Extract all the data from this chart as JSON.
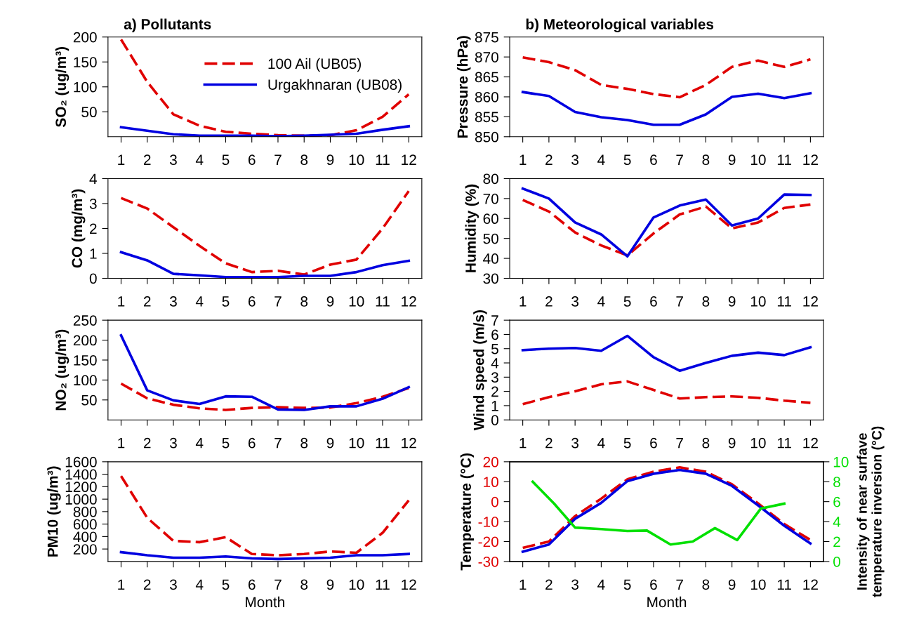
{
  "chart_data": [
    {
      "type": "line",
      "title": "a) Pollutants",
      "ylabel": "SO₂ (ug/m³)",
      "x": [
        1,
        2,
        3,
        4,
        5,
        6,
        7,
        8,
        9,
        10,
        11,
        12
      ],
      "xlim": [
        0.5,
        12.5
      ],
      "xticks": [
        1,
        2,
        3,
        4,
        5,
        6,
        7,
        8,
        9,
        10,
        11,
        12
      ],
      "ylim": [
        0,
        200
      ],
      "yticks": [
        50,
        100,
        150,
        200
      ],
      "legend": "top right",
      "series": [
        {
          "name": "100 Ail (UB05)",
          "color": "#e00000",
          "line_style": "dashed",
          "values": [
            195,
            110,
            45,
            22,
            10,
            6,
            3,
            2,
            3,
            13,
            40,
            85
          ]
        },
        {
          "name": "Urgakhnaran (UB08)",
          "color": "#0000e0",
          "line_style": "solid",
          "values": [
            19,
            12,
            5,
            2,
            2,
            2,
            1,
            2,
            4,
            6,
            14,
            21
          ]
        }
      ]
    },
    {
      "type": "line",
      "ylabel": "CO (mg/m³)",
      "x": [
        1,
        2,
        3,
        4,
        5,
        6,
        7,
        8,
        9,
        10,
        11,
        12
      ],
      "xlim": [
        0.5,
        12.5
      ],
      "xticks": [
        1,
        2,
        3,
        4,
        5,
        6,
        7,
        8,
        9,
        10,
        11,
        12
      ],
      "ylim": [
        0,
        4
      ],
      "yticks": [
        0,
        1,
        2,
        3,
        4
      ],
      "series": [
        {
          "color": "#e00000",
          "line_style": "dashed",
          "values": [
            3.22,
            2.8,
            2.05,
            1.3,
            0.6,
            0.25,
            0.3,
            0.15,
            0.55,
            0.75,
            2.0,
            3.5
          ]
        },
        {
          "color": "#0000e0",
          "line_style": "solid",
          "values": [
            1.05,
            0.72,
            0.18,
            0.12,
            0.05,
            0.05,
            0.05,
            0.1,
            0.1,
            0.25,
            0.53,
            0.7
          ]
        }
      ]
    },
    {
      "type": "line",
      "ylabel": "NO₂ (ug/m³)",
      "x": [
        1,
        2,
        3,
        4,
        5,
        6,
        7,
        8,
        9,
        10,
        11,
        12
      ],
      "xlim": [
        0.5,
        12.5
      ],
      "xticks": [
        1,
        2,
        3,
        4,
        5,
        6,
        7,
        8,
        9,
        10,
        11,
        12
      ],
      "ylim": [
        0,
        250
      ],
      "yticks": [
        50,
        100,
        150,
        200,
        250
      ],
      "series": [
        {
          "color": "#e00000",
          "line_style": "dashed",
          "values": [
            91,
            54,
            38,
            29,
            25,
            30,
            32,
            30,
            31,
            42,
            58,
            80
          ]
        },
        {
          "color": "#0000e0",
          "line_style": "solid",
          "values": [
            212,
            74,
            49,
            40,
            59,
            58,
            26,
            25,
            34,
            34,
            53,
            82
          ]
        }
      ]
    },
    {
      "type": "line",
      "ylabel": "PM10 (ug/m³)",
      "xlabel": "Month",
      "x": [
        1,
        2,
        3,
        4,
        5,
        6,
        7,
        8,
        9,
        10,
        11,
        12
      ],
      "xlim": [
        0.5,
        12.5
      ],
      "xticks": [
        1,
        2,
        3,
        4,
        5,
        6,
        7,
        8,
        9,
        10,
        11,
        12
      ],
      "ylim": [
        0,
        1600
      ],
      "yticks": [
        200,
        400,
        600,
        800,
        1000,
        1200,
        1400,
        1600
      ],
      "series": [
        {
          "color": "#e00000",
          "line_style": "dashed",
          "values": [
            1370,
            700,
            330,
            310,
            390,
            120,
            100,
            120,
            160,
            140,
            460,
            980
          ]
        },
        {
          "color": "#0000e0",
          "line_style": "solid",
          "values": [
            150,
            100,
            60,
            60,
            80,
            50,
            40,
            50,
            60,
            100,
            100,
            120
          ]
        }
      ]
    },
    {
      "type": "line",
      "title": "b) Meteorological variables",
      "ylabel": "Pressure (hPa)",
      "x": [
        1,
        2,
        3,
        4,
        5,
        6,
        7,
        8,
        9,
        10,
        11,
        12
      ],
      "xlim": [
        0.5,
        12.5
      ],
      "xticks": [
        1,
        2,
        3,
        4,
        5,
        6,
        7,
        8,
        9,
        10,
        11,
        12
      ],
      "ylim": [
        850,
        875
      ],
      "yticks": [
        850,
        855,
        860,
        865,
        870,
        875
      ],
      "series": [
        {
          "color": "#e00000",
          "line_style": "dashed",
          "values": [
            869.9,
            868.7,
            866.7,
            863.0,
            862.0,
            860.7,
            859.9,
            863.0,
            867.5,
            869.1,
            867.5,
            869.4
          ]
        },
        {
          "color": "#0000e0",
          "line_style": "solid",
          "values": [
            861.2,
            860.2,
            856.2,
            854.9,
            854.2,
            853.0,
            853.0,
            855.6,
            860.0,
            860.8,
            859.7,
            860.9
          ]
        }
      ]
    },
    {
      "type": "line",
      "ylabel": "Humidity (%)",
      "x": [
        1,
        2,
        3,
        4,
        5,
        6,
        7,
        8,
        9,
        10,
        11,
        12
      ],
      "xlim": [
        0.5,
        12.5
      ],
      "xticks": [
        1,
        2,
        3,
        4,
        5,
        6,
        7,
        8,
        9,
        10,
        11,
        12
      ],
      "ylim": [
        30,
        80
      ],
      "yticks": [
        30,
        40,
        50,
        60,
        70,
        80
      ],
      "series": [
        {
          "color": "#e00000",
          "line_style": "dashed",
          "values": [
            69.3,
            63.5,
            53,
            46.5,
            41.5,
            52.5,
            62,
            66,
            55,
            58,
            65.3,
            67
          ]
        },
        {
          "color": "#0000e0",
          "line_style": "solid",
          "values": [
            75,
            70,
            58,
            52,
            41,
            60.5,
            66.5,
            69.5,
            56.5,
            60,
            72,
            71.8
          ]
        }
      ]
    },
    {
      "type": "line",
      "ylabel": "Wind speed (m/s)",
      "x": [
        1,
        2,
        3,
        4,
        5,
        6,
        7,
        8,
        9,
        10,
        11,
        12
      ],
      "xlim": [
        0.5,
        12.5
      ],
      "xticks": [
        1,
        2,
        3,
        4,
        5,
        6,
        7,
        8,
        9,
        10,
        11,
        12
      ],
      "ylim": [
        0,
        7
      ],
      "yticks": [
        0,
        1,
        2,
        3,
        4,
        5,
        6,
        7
      ],
      "series": [
        {
          "color": "#e00000",
          "line_style": "dashed",
          "values": [
            1.1,
            1.6,
            2.0,
            2.5,
            2.7,
            2.1,
            1.5,
            1.6,
            1.65,
            1.55,
            1.35,
            1.2
          ]
        },
        {
          "color": "#0000e0",
          "line_style": "solid",
          "values": [
            4.9,
            5.0,
            5.05,
            4.85,
            5.9,
            4.4,
            3.45,
            4.0,
            4.5,
            4.72,
            4.55,
            5.1
          ]
        }
      ]
    },
    {
      "type": "line",
      "ylabel": "Temperature (°C)",
      "y2label": "Intensity of near surfave\ntemperature inversion (°C)",
      "xlabel": "Month",
      "x": [
        1,
        2,
        3,
        4,
        5,
        6,
        7,
        8,
        9,
        10,
        11,
        12
      ],
      "xlim": [
        0.5,
        12.5
      ],
      "xticks": [
        1,
        2,
        3,
        4,
        5,
        6,
        7,
        8,
        9,
        10,
        11,
        12
      ],
      "ylim": [
        -30,
        20
      ],
      "yticks": [
        -30,
        -20,
        -10,
        0,
        10,
        20
      ],
      "y2lim": [
        0,
        10
      ],
      "y2ticks": [
        0,
        2,
        4,
        6,
        8,
        10
      ],
      "series": [
        {
          "color": "#e00000",
          "line_style": "dashed",
          "values": [
            -23.2,
            -20,
            -7.3,
            1.5,
            11.2,
            15,
            17.2,
            15,
            8.7,
            -0.9,
            -11.2,
            -19.2
          ]
        },
        {
          "color": "#0000e0",
          "line_style": "solid",
          "values": [
            -25.1,
            -21.5,
            -8.6,
            -0.6,
            10.3,
            14,
            15.9,
            14,
            7.9,
            -1.9,
            -12.1,
            -21
          ]
        },
        {
          "color": "#00e000",
          "line_style": "solid",
          "axis": "y2",
          "x": [
            1.38,
            2.2,
            3.0,
            4.0,
            5.0,
            5.75,
            6.65,
            7.5,
            8.35,
            9.2,
            10.1,
            11.0
          ],
          "values": [
            8.0,
            5.8,
            3.4,
            3.25,
            3.05,
            3.1,
            1.7,
            2.0,
            3.35,
            2.15,
            5.3,
            5.8
          ]
        }
      ]
    }
  ]
}
